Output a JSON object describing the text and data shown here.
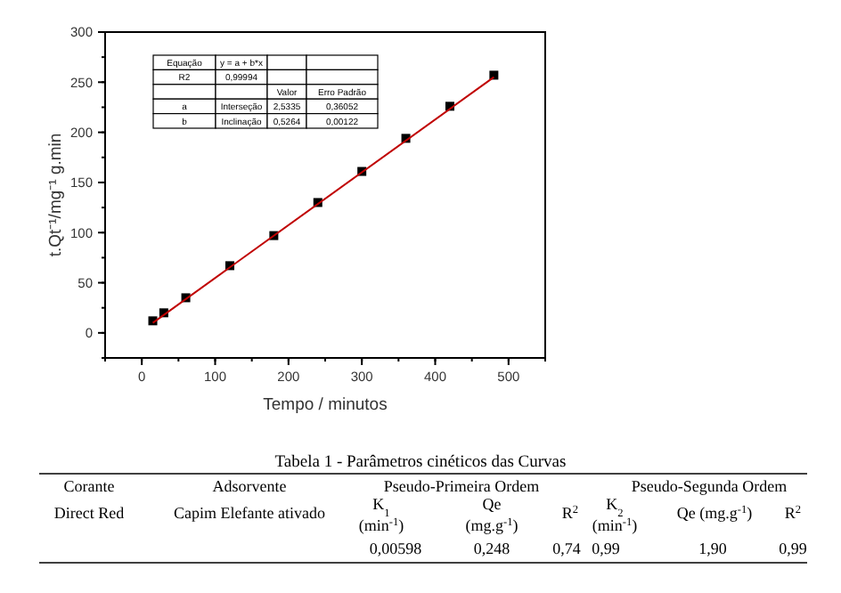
{
  "chart_data": {
    "type": "scatter",
    "xlabel": "Tempo / minutos",
    "ylabel": "t.Qt⁻¹/mg⁻¹ g.min",
    "xlim": [
      -50,
      550
    ],
    "xticks": [
      0,
      100,
      200,
      300,
      400,
      500
    ],
    "ylim": [
      -25,
      300
    ],
    "yticks": [
      0,
      50,
      100,
      150,
      200,
      250,
      300
    ],
    "grid": false,
    "series": [
      {
        "color": "#000000",
        "marker": "square",
        "x": [
          15,
          30,
          60,
          120,
          180,
          240,
          300,
          360,
          420,
          480
        ],
        "values": [
          12,
          20,
          35,
          67,
          97,
          130,
          161,
          194,
          226,
          257
        ]
      },
      {
        "type": "line",
        "color": "#c00000",
        "marker": "none",
        "line_style": "solid",
        "x": [
          15,
          480
        ],
        "values": [
          10,
          255
        ]
      }
    ],
    "annotations": [
      "Equação",
      "y = a + b*x",
      "R2",
      "0,99994",
      "Valor",
      "Erro Padrão",
      "a",
      "Interseção",
      "2,5335",
      "0,36052",
      "b",
      "Inclinação",
      "0,5264",
      "0,00122",
      "Tabela 1 - Parâmetros cinéticos das Curvas",
      "Corante",
      "Adsorvente",
      "Pseudo-Primeira Ordem",
      "Pseudo-Segunda Ordem",
      "Direct Red",
      "Capim Elefante ativado",
      "K$_{1}$",
      "(min$^{-1}$)",
      "Qe",
      "(mg.g$^{-1}$)",
      "R$^{2}$",
      "K$_{2}$",
      "(min$^{-1}$)",
      "Qe (mg.g$^{-1}$)",
      "R$^{2}$",
      "0,00598",
      "0,248",
      "0,74",
      "0,99",
      "1,90",
      "0,99"
    ]
  }
}
